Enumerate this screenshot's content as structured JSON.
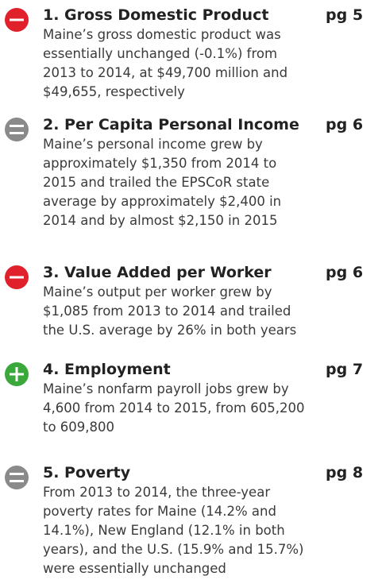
{
  "items": [
    {
      "status": "minus",
      "title": "1. Gross Domestic Product",
      "page": "pg 5",
      "lines": [
        "Maine’s gross domestic product was",
        "essentially unchanged (-0.1%) from",
        "2013 to 2014, at $49,700 million and",
        "$49,655, respectively"
      ]
    },
    {
      "status": "neutral",
      "title": "2. Per Capita Personal Income",
      "page": "pg 6",
      "lines": [
        "Maine’s personal income grew by",
        "approximately $1,350 from 2014 to",
        "2015 and trailed the EPSCoR state",
        "average by approximately $2,400 in",
        "2014 and by almost $2,150 in 2015"
      ]
    },
    {
      "status": "minus",
      "title": "3. Value Added per Worker",
      "page": "pg 6",
      "lines": [
        "Maine’s output per worker grew by",
        "$1,085 from 2013 to 2014 and trailed",
        "the U.S. average by 26% in both years"
      ]
    },
    {
      "status": "plus",
      "title": "4. Employment",
      "page": "pg 7",
      "lines": [
        "Maine’s nonfarm payroll jobs grew by",
        "4,600 from 2014 to 2015, from 605,200",
        "to 609,800"
      ]
    },
    {
      "status": "neutral",
      "title": "5. Poverty",
      "page": "pg 8",
      "lines": [
        "From 2013 to 2014, the three-year",
        "poverty rates for Maine (14.2% and",
        "14.1%), New England (12.1% in both",
        "years), and the U.S. (15.9% and 15.7%)",
        "were essentially unchanged"
      ]
    }
  ]
}
